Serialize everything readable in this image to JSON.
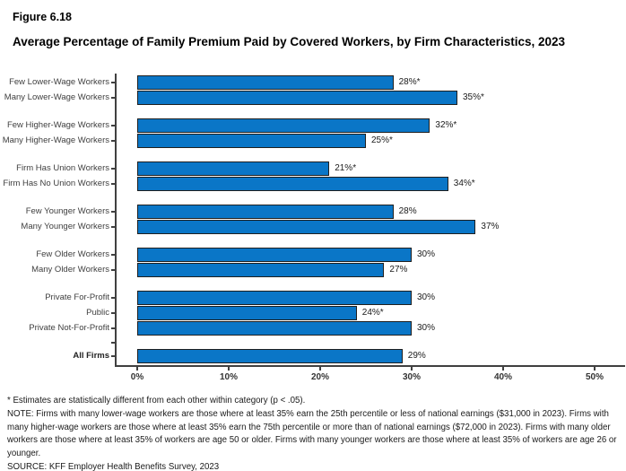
{
  "figure": {
    "number": "Figure 6.18",
    "title": "Average Percentage of Family Premium Paid by Covered Workers, by Firm Characteristics, 2023"
  },
  "chart_data": {
    "type": "bar",
    "orientation": "horizontal",
    "title": "Average Percentage of Family Premium Paid by Covered Workers, by Firm Characteristics, 2023",
    "xlabel": "",
    "ylabel": "",
    "xlim": [
      0,
      53
    ],
    "x_tick_values": [
      0,
      10,
      20,
      30,
      40,
      50
    ],
    "x_tick_labels": [
      "0%",
      "10%",
      "20%",
      "30%",
      "40%",
      "50%"
    ],
    "grid": false,
    "legend": "none",
    "bar_color": "#0a76c7",
    "bar_border_color": "#1f1f1f",
    "axis_color": "#404040",
    "groups": [
      {
        "name": "lower-wage",
        "bars": [
          {
            "label": "Few Lower-Wage Workers",
            "value": 28,
            "display": "28%*"
          },
          {
            "label": "Many Lower-Wage Workers",
            "value": 35,
            "display": "35%*"
          }
        ]
      },
      {
        "name": "higher-wage",
        "bars": [
          {
            "label": "Few Higher-Wage Workers",
            "value": 32,
            "display": "32%*"
          },
          {
            "label": "Many Higher-Wage Workers",
            "value": 25,
            "display": "25%*"
          }
        ]
      },
      {
        "name": "union",
        "bars": [
          {
            "label": "Firm Has Union Workers",
            "value": 21,
            "display": "21%*"
          },
          {
            "label": "Firm Has No Union Workers",
            "value": 34,
            "display": "34%*"
          }
        ]
      },
      {
        "name": "younger",
        "bars": [
          {
            "label": "Few Younger Workers",
            "value": 28,
            "display": "28%"
          },
          {
            "label": "Many Younger Workers",
            "value": 37,
            "display": "37%"
          }
        ]
      },
      {
        "name": "older",
        "bars": [
          {
            "label": "Few Older Workers",
            "value": 30,
            "display": "30%"
          },
          {
            "label": "Many Older Workers",
            "value": 27,
            "display": "27%"
          }
        ]
      },
      {
        "name": "ownership",
        "bars": [
          {
            "label": "Private For-Profit",
            "value": 30,
            "display": "30%"
          },
          {
            "label": "Public",
            "value": 24,
            "display": "24%*"
          },
          {
            "label": "Private Not-For-Profit",
            "value": 30,
            "display": "30%"
          }
        ]
      },
      {
        "name": "all-firms",
        "separator_tick_before": true,
        "bars": [
          {
            "label": "All Firms",
            "value": 29,
            "display": "29%",
            "bold": true
          }
        ]
      }
    ]
  },
  "footnotes": {
    "star": "* Estimates are statistically different from each other within category (p < .05).",
    "note": "NOTE: Firms with many lower-wage workers are those where at least 35% earn the 25th percentile or less of national earnings ($31,000 in 2023). Firms with many higher-wage workers are those where at least 35% earn the 75th percentile or more than of national earnings ($72,000 in 2023). Firms with many older workers are those where at least 35% of workers are age 50 or older. Firms with many younger workers are those where at least 35% of workers are age 26 or younger.",
    "source": "SOURCE: KFF Employer Health Benefits Survey, 2023"
  }
}
